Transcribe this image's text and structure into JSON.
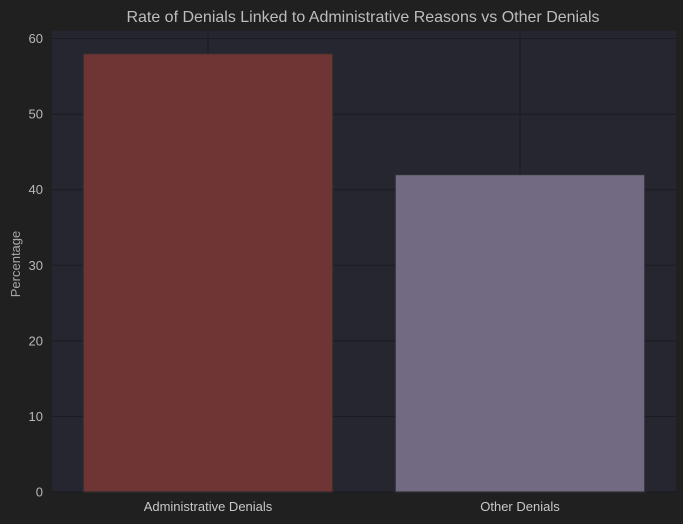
{
  "chart_data": {
    "type": "bar",
    "title": "Rate of Denials Linked to Administrative Reasons vs Other Denials",
    "xlabel": "",
    "ylabel": "Percentage",
    "categories": [
      "Administrative Denials",
      "Other Denials"
    ],
    "values": [
      58,
      42
    ],
    "ylim": [
      0,
      61
    ],
    "yticks": [
      "0",
      "10",
      "20",
      "30",
      "40",
      "50",
      "60"
    ],
    "grid": true,
    "legend": "none",
    "colors": {
      "background": "#202020",
      "plot_background": "#262630",
      "grid": "#1a1a1f",
      "bars": [
        "#6e3534",
        "#716a82"
      ],
      "bar_edge": "#2e2e2e"
    }
  }
}
